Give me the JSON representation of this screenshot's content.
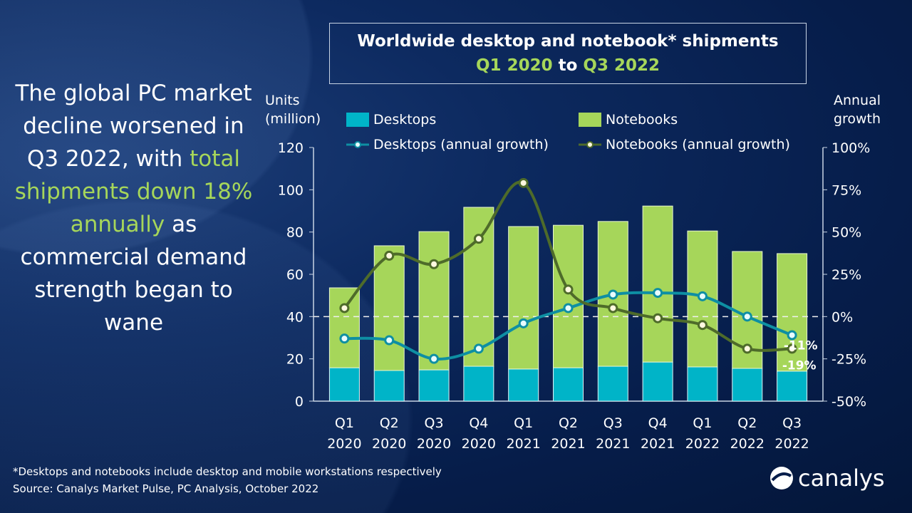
{
  "headline": {
    "part1": "The global PC market decline worsened in Q3 2022, with ",
    "highlight1": "total shipments down 18% annually",
    "part2": " as commercial demand strength began to wane"
  },
  "title": {
    "line1": "Worldwide desktop and notebook* shipments",
    "from": "Q1 2020",
    "to_word": "to",
    "to": "Q3 2022"
  },
  "footnote": "*Desktops and notebooks include desktop and mobile workstations respectively",
  "source": "Source: Canalys Market Pulse, PC Analysis, October 2022",
  "logo_text": "canalys",
  "colors": {
    "desktops": "#00b4c8",
    "notebooks": "#a6d65a",
    "desktop_growth": "#0e8fa3",
    "notebook_growth": "#4e6b2a",
    "highlight": "#a6d65a"
  },
  "chart_data": {
    "type": "bar",
    "stacked": true,
    "ylabel_left": "Units (million)",
    "ylabel_right": "Annual growth",
    "ylim_left": [
      0,
      120
    ],
    "yticks_left": [
      0,
      20,
      40,
      60,
      80,
      100,
      120
    ],
    "ylim_right": [
      -50,
      100
    ],
    "yticks_right": [
      "-50%",
      "-25%",
      "0%",
      "25%",
      "50%",
      "75%",
      "100%"
    ],
    "categories": [
      [
        "Q1",
        "2020"
      ],
      [
        "Q2",
        "2020"
      ],
      [
        "Q3",
        "2020"
      ],
      [
        "Q4",
        "2020"
      ],
      [
        "Q1",
        "2021"
      ],
      [
        "Q2",
        "2021"
      ],
      [
        "Q3",
        "2021"
      ],
      [
        "Q4",
        "2021"
      ],
      [
        "Q1",
        "2022"
      ],
      [
        "Q2",
        "2022"
      ],
      [
        "Q3",
        "2022"
      ]
    ],
    "series": [
      {
        "name": "Desktops",
        "kind": "bar",
        "values": [
          15.8,
          14.5,
          14.8,
          16.5,
          15.2,
          15.8,
          16.5,
          18.5,
          16.2,
          15.5,
          14.2
        ]
      },
      {
        "name": "Notebooks",
        "kind": "bar",
        "values": [
          37.8,
          59.0,
          65.4,
          75.2,
          67.4,
          67.4,
          68.5,
          73.8,
          64.3,
          55.3,
          55.6
        ]
      },
      {
        "name": "Desktops (annual growth)",
        "kind": "line",
        "axis": "right",
        "values": [
          -13,
          -14,
          -25,
          -19,
          -4,
          5,
          13,
          14,
          12,
          0,
          -11
        ]
      },
      {
        "name": "Notebooks (annual growth)",
        "kind": "line",
        "axis": "right",
        "values": [
          5,
          36,
          31,
          46,
          79,
          16,
          5,
          -1,
          -5,
          -19,
          -19
        ]
      }
    ],
    "annotations": [
      "-11%",
      "-19%"
    ],
    "zero_line": "dashed",
    "grid": false,
    "legend": "top"
  }
}
